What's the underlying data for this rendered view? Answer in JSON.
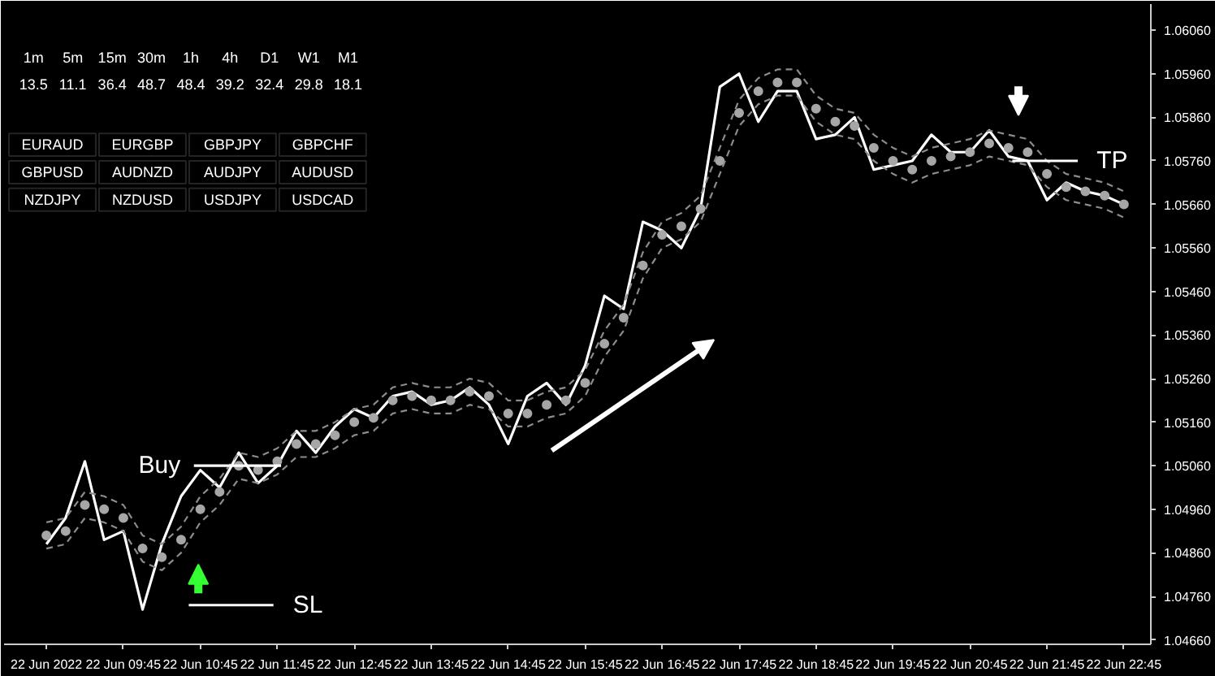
{
  "chart_data": {
    "type": "line",
    "x": [
      "2022-06-22T08:45",
      "2022-06-22T09:00",
      "2022-06-22T09:15",
      "2022-06-22T09:30",
      "2022-06-22T09:45",
      "2022-06-22T10:00",
      "2022-06-22T10:15",
      "2022-06-22T10:30",
      "2022-06-22T10:45",
      "2022-06-22T11:00",
      "2022-06-22T11:15",
      "2022-06-22T11:30",
      "2022-06-22T11:45",
      "2022-06-22T12:00",
      "2022-06-22T12:15",
      "2022-06-22T12:30",
      "2022-06-22T12:45",
      "2022-06-22T13:00",
      "2022-06-22T13:15",
      "2022-06-22T13:30",
      "2022-06-22T13:45",
      "2022-06-22T14:00",
      "2022-06-22T14:15",
      "2022-06-22T14:30",
      "2022-06-22T14:45",
      "2022-06-22T15:00",
      "2022-06-22T15:15",
      "2022-06-22T15:30",
      "2022-06-22T15:45",
      "2022-06-22T16:00",
      "2022-06-22T16:15",
      "2022-06-22T16:30",
      "2022-06-22T16:45",
      "2022-06-22T17:00",
      "2022-06-22T17:15",
      "2022-06-22T17:30",
      "2022-06-22T17:45",
      "2022-06-22T18:00",
      "2022-06-22T18:15",
      "2022-06-22T18:30",
      "2022-06-22T18:45",
      "2022-06-22T19:00",
      "2022-06-22T19:15",
      "2022-06-22T19:30",
      "2022-06-22T19:45",
      "2022-06-22T20:00",
      "2022-06-22T20:15",
      "2022-06-22T20:30",
      "2022-06-22T20:45",
      "2022-06-22T21:00",
      "2022-06-22T21:15",
      "2022-06-22T21:30",
      "2022-06-22T21:45",
      "2022-06-22T22:00",
      "2022-06-22T22:15",
      "2022-06-22T22:30",
      "2022-06-22T22:45"
    ],
    "series": [
      {
        "color": "#ffffff",
        "line_style": "solid",
        "values": [
          1.0488,
          1.0494,
          1.0507,
          1.0489,
          1.0491,
          1.0473,
          1.0488,
          1.0499,
          1.0505,
          1.0501,
          1.0509,
          1.0502,
          1.0506,
          1.0514,
          1.0509,
          1.0515,
          1.0519,
          1.0517,
          1.0522,
          1.0523,
          1.052,
          1.0521,
          1.0524,
          1.052,
          1.0511,
          1.0522,
          1.0525,
          1.052,
          1.0529,
          1.0545,
          1.0542,
          1.0562,
          1.056,
          1.0556,
          1.0565,
          1.0593,
          1.0596,
          1.0585,
          1.0592,
          1.0592,
          1.0581,
          1.0582,
          1.0586,
          1.0574,
          1.0575,
          1.0576,
          1.0582,
          1.0578,
          1.0578,
          1.0583,
          1.0577,
          1.0576,
          1.0567,
          1.0571,
          1.0569,
          1.0568,
          1.0566
        ]
      },
      {
        "type": "scatter",
        "color": "#a6a6a6",
        "marker": "circle",
        "values": [
          1.049,
          1.0491,
          1.0497,
          1.0496,
          1.0494,
          1.0487,
          1.0485,
          1.0489,
          1.0496,
          1.05,
          1.0506,
          1.0505,
          1.0507,
          1.0511,
          1.0511,
          1.0513,
          1.0516,
          1.0517,
          1.0521,
          1.0522,
          1.0521,
          1.0521,
          1.0523,
          1.0522,
          1.0518,
          1.0518,
          1.052,
          1.0521,
          1.0525,
          1.0534,
          1.054,
          1.0552,
          1.0559,
          1.0561,
          1.0565,
          1.0576,
          1.0587,
          1.0592,
          1.0594,
          1.0594,
          1.0588,
          1.0585,
          1.0584,
          1.0579,
          1.0576,
          1.0574,
          1.0576,
          1.0577,
          1.0578,
          1.058,
          1.0579,
          1.0578,
          1.0573,
          1.057,
          1.0569,
          1.0568,
          1.0566
        ]
      },
      {
        "color": "#8c8c8c",
        "line_style": "dashed",
        "values": [
          1.0493,
          1.0494,
          1.05,
          1.0499,
          1.0497,
          1.049,
          1.0488,
          1.0492,
          1.0499,
          1.0503,
          1.0509,
          1.0508,
          1.051,
          1.0514,
          1.0514,
          1.0516,
          1.0519,
          1.052,
          1.0524,
          1.0525,
          1.0524,
          1.0524,
          1.0526,
          1.0525,
          1.0521,
          1.0521,
          1.0523,
          1.0524,
          1.0528,
          1.0537,
          1.0543,
          1.0555,
          1.0562,
          1.0564,
          1.0568,
          1.0579,
          1.059,
          1.0595,
          1.0597,
          1.0597,
          1.0591,
          1.0588,
          1.0587,
          1.0582,
          1.0579,
          1.0577,
          1.0579,
          1.058,
          1.0581,
          1.0583,
          1.0582,
          1.0581,
          1.0576,
          1.0573,
          1.0572,
          1.0571,
          1.0569
        ]
      },
      {
        "color": "#8c8c8c",
        "line_style": "dashed",
        "values": [
          1.0487,
          1.0488,
          1.0494,
          1.0493,
          1.0491,
          1.0484,
          1.0482,
          1.0486,
          1.0493,
          1.0497,
          1.0503,
          1.0502,
          1.0504,
          1.0508,
          1.0508,
          1.051,
          1.0513,
          1.0514,
          1.0518,
          1.0519,
          1.0518,
          1.0518,
          1.052,
          1.0519,
          1.0515,
          1.0515,
          1.0517,
          1.0518,
          1.0522,
          1.0531,
          1.0537,
          1.0549,
          1.0556,
          1.0558,
          1.0562,
          1.0573,
          1.0584,
          1.0589,
          1.0591,
          1.0591,
          1.0585,
          1.0582,
          1.0581,
          1.0576,
          1.0573,
          1.0571,
          1.0573,
          1.0574,
          1.0575,
          1.0577,
          1.0576,
          1.0575,
          1.057,
          1.0567,
          1.0566,
          1.0565,
          1.0563
        ]
      },
      {
        "name": "Buy",
        "color": "#ffffff",
        "line_style": "solid",
        "x": [
          "2022-06-22T10:40",
          "2022-06-22T11:48"
        ],
        "values": [
          1.0506,
          1.0506
        ]
      },
      {
        "name": "SL",
        "color": "#ffffff",
        "line_style": "solid",
        "x": [
          "2022-06-22T10:36",
          "2022-06-22T11:42"
        ],
        "values": [
          1.0474,
          1.0474
        ]
      },
      {
        "name": "TP",
        "color": "#ffffff",
        "line_style": "solid",
        "x": [
          "2022-06-22T21:18",
          "2022-06-22T22:09"
        ],
        "values": [
          1.0576,
          1.0576
        ]
      }
    ],
    "xlim": [
      "2022-06-22T08:12",
      "2022-06-22T23:06"
    ],
    "ylim": [
      1.0465,
      1.0612
    ],
    "xticks": [
      {
        "value": "2022-06-22T08:45",
        "label": "22 Jun 2022"
      },
      {
        "value": "2022-06-22T09:45",
        "label": "22 Jun 09:45"
      },
      {
        "value": "2022-06-22T10:45",
        "label": "22 Jun 10:45"
      },
      {
        "value": "2022-06-22T11:45",
        "label": "22 Jun 11:45"
      },
      {
        "value": "2022-06-22T12:45",
        "label": "22 Jun 12:45"
      },
      {
        "value": "2022-06-22T13:45",
        "label": "22 Jun 13:45"
      },
      {
        "value": "2022-06-22T14:45",
        "label": "22 Jun 14:45"
      },
      {
        "value": "2022-06-22T15:45",
        "label": "22 Jun 15:45"
      },
      {
        "value": "2022-06-22T16:45",
        "label": "22 Jun 16:45"
      },
      {
        "value": "2022-06-22T17:45",
        "label": "22 Jun 17:45"
      },
      {
        "value": "2022-06-22T18:45",
        "label": "22 Jun 18:45"
      },
      {
        "value": "2022-06-22T19:45",
        "label": "22 Jun 19:45"
      },
      {
        "value": "2022-06-22T20:45",
        "label": "22 Jun 20:45"
      },
      {
        "value": "2022-06-22T21:45",
        "label": "22 Jun 21:45"
      },
      {
        "value": "2022-06-22T22:45",
        "label": "22 Jun 22:45"
      }
    ],
    "yticks": [
      {
        "value": 1.0466,
        "label": "1.04660"
      },
      {
        "value": 1.0476,
        "label": "1.04760"
      },
      {
        "value": 1.0486,
        "label": "1.04860"
      },
      {
        "value": 1.0496,
        "label": "1.04960"
      },
      {
        "value": 1.0506,
        "label": "1.05060"
      },
      {
        "value": 1.0516,
        "label": "1.05160"
      },
      {
        "value": 1.0526,
        "label": "1.05260"
      },
      {
        "value": 1.0536,
        "label": "1.05360"
      },
      {
        "value": 1.0546,
        "label": "1.05460"
      },
      {
        "value": 1.0556,
        "label": "1.05560"
      },
      {
        "value": 1.0566,
        "label": "1.05660"
      },
      {
        "value": 1.0576,
        "label": "1.05760"
      },
      {
        "value": 1.0586,
        "label": "1.05860"
      },
      {
        "value": 1.0596,
        "label": "1.05960"
      },
      {
        "value": 1.0606,
        "label": "1.06060"
      }
    ],
    "annotations": [
      "1m",
      "5m",
      "15m",
      "30m",
      "1h",
      "4h",
      "D1",
      "W1",
      "M1",
      "13.5",
      "11.1",
      "36.4",
      "48.7",
      "48.4",
      "39.2",
      "32.4",
      "29.8",
      "18.1",
      "EURAUD",
      "EURGBP",
      "GBPJPY",
      "GBPCHF",
      "GBPUSD",
      "AUDNZD",
      "AUDJPY",
      "AUDUSD",
      "NZDJPY",
      "NZDUSD",
      "USDJPY",
      "USDCAD"
    ]
  }
}
